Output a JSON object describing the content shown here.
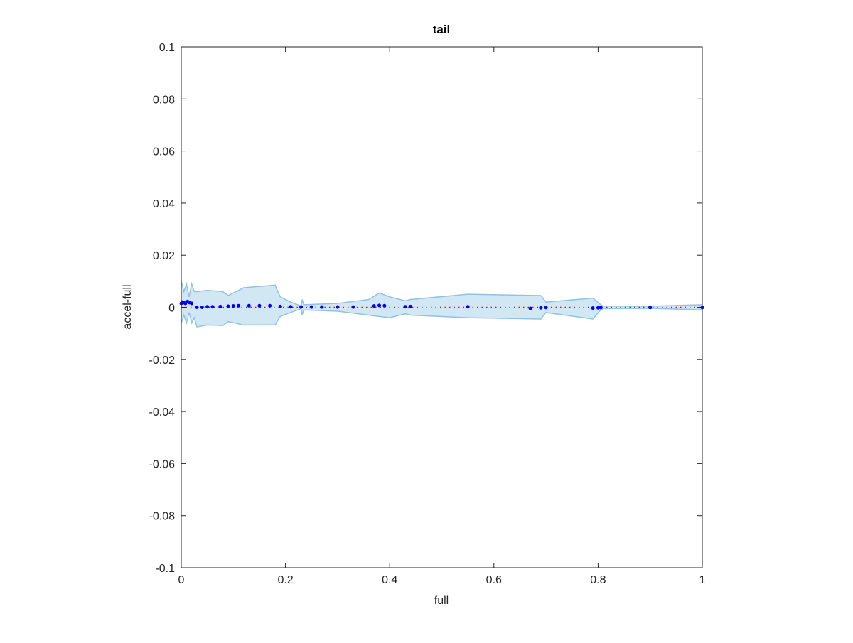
{
  "chart_data": {
    "type": "scatter",
    "title": "tail",
    "xlabel": "full",
    "ylabel": "accel-full",
    "xlim": [
      0,
      1
    ],
    "ylim": [
      -0.1,
      0.1
    ],
    "xticks": [
      0,
      0.2,
      0.4,
      0.6,
      0.8,
      1
    ],
    "yticks": [
      -0.1,
      -0.08,
      -0.06,
      -0.04,
      -0.02,
      0,
      0.02,
      0.04,
      0.06,
      0.08,
      0.1
    ],
    "band": {
      "color": "#8fc3e4",
      "x": [
        0,
        0.005,
        0.01,
        0.015,
        0.02,
        0.025,
        0.03,
        0.05,
        0.08,
        0.09,
        0.12,
        0.18,
        0.19,
        0.21,
        0.23,
        0.232,
        0.235,
        0.3,
        0.36,
        0.38,
        0.4,
        0.43,
        0.44,
        0.55,
        0.69,
        0.7,
        0.79,
        0.805,
        0.81,
        0.9,
        1
      ],
      "upper": [
        0.01,
        0.006,
        0.009,
        0.004,
        0.009,
        0.006,
        0.006,
        0.0065,
        0.006,
        0.0045,
        0.0075,
        0.0085,
        0.004,
        0.002,
        0.0005,
        0.003,
        0.001,
        0.0015,
        0.003,
        0.0055,
        0.004,
        0.0025,
        0.003,
        0.005,
        0.0045,
        0.002,
        0.0035,
        0.001,
        0.0005,
        0.0004,
        0.001
      ],
      "lower": [
        -0.006,
        -0.003,
        -0.006,
        -0.002,
        -0.006,
        -0.004,
        -0.0075,
        -0.0068,
        -0.007,
        -0.0055,
        -0.0068,
        -0.0068,
        -0.0035,
        -0.002,
        -0.0005,
        -0.003,
        -0.001,
        -0.0015,
        -0.003,
        -0.0035,
        -0.004,
        -0.0025,
        -0.003,
        -0.004,
        -0.0045,
        -0.002,
        -0.0045,
        -0.001,
        -0.0005,
        -0.0004,
        -0.001
      ]
    },
    "reference": {
      "color": "#ff0000",
      "x": [
        0,
        1
      ],
      "values": [
        0,
        0
      ]
    },
    "points": {
      "color": "#0000ff",
      "x": [
        0,
        0.002,
        0.005,
        0.008,
        0.012,
        0.016,
        0.02,
        0.03,
        0.04,
        0.05,
        0.06,
        0.075,
        0.09,
        0.1,
        0.11,
        0.13,
        0.15,
        0.17,
        0.19,
        0.21,
        0.23,
        0.25,
        0.27,
        0.3,
        0.33,
        0.37,
        0.38,
        0.39,
        0.43,
        0.44,
        0.55,
        0.67,
        0.69,
        0.7,
        0.79,
        0.8,
        0.805,
        0.9,
        1
      ],
      "values": [
        0.0015,
        0.002,
        0.0018,
        0.0015,
        0.0022,
        0.0018,
        0.0015,
        0,
        0,
        0.0002,
        0.0002,
        0.0003,
        0.0004,
        0.0005,
        0.0006,
        0.0006,
        0.0006,
        0.0006,
        0.0003,
        0.0002,
        0.0001,
        0.0001,
        0.0001,
        0.0001,
        0.0001,
        0.0005,
        0.0007,
        0.0006,
        0.0002,
        0.0003,
        0.0002,
        -0.0004,
        -0.0002,
        -0.0001,
        -0.0003,
        -0.0002,
        -0.0001,
        -0.0001,
        -0.0001
      ]
    }
  }
}
